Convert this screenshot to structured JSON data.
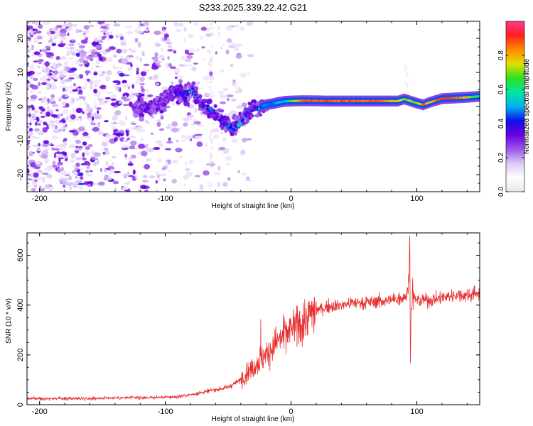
{
  "figure_title": "S233.2025.339.22.42.G21",
  "chart_data": [
    {
      "type": "heatmap",
      "title": "S233.2025.339.22.42.G21",
      "xlabel": "Height of straight line (km)",
      "ylabel": "Frequency (Hz)",
      "xlim": [
        -210,
        150
      ],
      "ylim": [
        -25,
        25
      ],
      "x_ticks": [
        -200,
        -100,
        0,
        100
      ],
      "x_tick_labels": [
        "-200",
        "-100",
        "0",
        "100"
      ],
      "y_ticks": [
        -20,
        -10,
        0,
        10,
        20
      ],
      "y_tick_labels": [
        "-20",
        "-10",
        "0",
        "10",
        "20"
      ],
      "colorbar": {
        "label": "Normalized spectral amplitude",
        "range": [
          0,
          1
        ],
        "ticks": [
          0.0,
          0.2,
          0.4,
          0.6,
          0.8
        ],
        "tick_labels": [
          "0.0",
          "0.2",
          "0.4",
          "0.6",
          "0.8"
        ],
        "colors": [
          "#e6e6e6",
          "#ffffff",
          "#dcc8f5",
          "#9a55e8",
          "#6a00e0",
          "#1010f0",
          "#00b4f0",
          "#00e6a0",
          "#30e020",
          "#e0e000",
          "#ff8c00",
          "#ff2020",
          "#ff3a8a"
        ]
      },
      "ridge": {
        "x": [
          -125,
          -118,
          -110,
          -100,
          -95,
          -90,
          -85,
          -78,
          -72,
          -65,
          -58,
          -52,
          -46,
          -40,
          -35,
          -30,
          -25,
          -20,
          -15,
          -10,
          -5,
          0,
          10,
          30,
          50,
          70,
          85,
          90,
          95,
          100,
          105,
          110,
          120,
          130,
          140,
          150
        ],
        "freq_hz": [
          -0.5,
          0,
          0.5,
          1.5,
          4,
          4.5,
          3,
          5,
          1,
          -1,
          -3,
          -5,
          -6.5,
          -4.5,
          -2,
          -0.5,
          -0.2,
          0.5,
          0.8,
          1.2,
          1.5,
          1.6,
          1.7,
          1.6,
          1.6,
          1.6,
          1.6,
          2.2,
          1.6,
          1.0,
          0.5,
          1.2,
          2.3,
          2.5,
          2.7,
          3.0
        ],
        "amplitude": [
          0.3,
          0.3,
          0.3,
          0.3,
          0.3,
          0.35,
          0.4,
          0.5,
          0.3,
          0.4,
          0.35,
          0.4,
          0.45,
          0.5,
          0.4,
          0.4,
          0.45,
          0.5,
          0.45,
          0.55,
          0.5,
          0.7,
          0.9,
          0.9,
          0.9,
          0.9,
          0.8,
          0.7,
          0.75,
          0.7,
          0.9,
          0.8,
          0.95,
          0.9,
          0.8,
          0.6
        ]
      },
      "noise_region": {
        "x_range": [
          -210,
          -90
        ],
        "freq_range": [
          -25,
          25
        ],
        "amplitude_range": [
          0.05,
          0.35
        ]
      }
    },
    {
      "type": "line",
      "xlabel": "Height of straight line (km)",
      "ylabel": "SNR (10 * v/v)",
      "xlim": [
        -210,
        150
      ],
      "ylim": [
        0,
        690
      ],
      "x_ticks": [
        -200,
        -100,
        0,
        100
      ],
      "x_tick_labels": [
        "-200",
        "-100",
        "0",
        "100"
      ],
      "y_ticks": [
        0,
        200,
        400,
        600
      ],
      "y_tick_labels": [
        "0",
        "200",
        "400",
        "600"
      ],
      "series": [
        {
          "name": "SNR",
          "color": "#e83030",
          "x": [
            -210,
            -200,
            -180,
            -160,
            -140,
            -120,
            -100,
            -90,
            -80,
            -70,
            -60,
            -50,
            -40,
            -35,
            -30,
            -25,
            -20,
            -15,
            -10,
            -5,
            0,
            5,
            10,
            15,
            20,
            30,
            40,
            50,
            60,
            70,
            80,
            88,
            92,
            94,
            95,
            96,
            97,
            100,
            110,
            120,
            130,
            140,
            150
          ],
          "y": [
            25,
            25,
            25,
            25,
            28,
            28,
            30,
            32,
            40,
            50,
            60,
            70,
            100,
            130,
            150,
            180,
            200,
            230,
            260,
            280,
            300,
            320,
            330,
            360,
            380,
            395,
            400,
            410,
            410,
            415,
            420,
            430,
            440,
            500,
            250,
            450,
            430,
            420,
            420,
            430,
            440,
            440,
            450
          ]
        }
      ],
      "annotations": [
        {
          "x": 94,
          "y": 640,
          "note": "spike"
        },
        {
          "x": 95,
          "y": 100,
          "note": "dip"
        },
        {
          "x": -28,
          "y": 420,
          "note": "spike"
        }
      ]
    }
  ]
}
